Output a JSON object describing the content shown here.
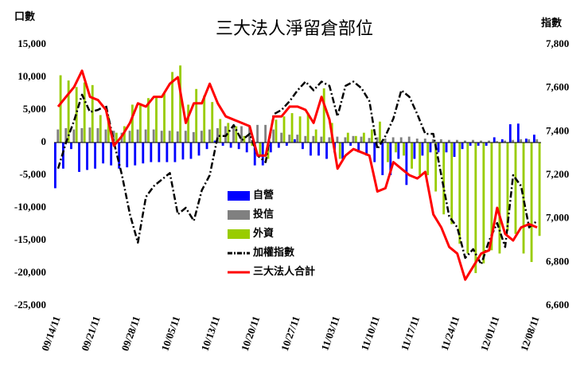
{
  "chart_data": {
    "type": "bar_line",
    "title": "三大法人淨留倉部位",
    "y_label": "口數",
    "y2_label": "指數",
    "categories": [
      "09/14/11",
      null,
      null,
      null,
      null,
      "09/21/11",
      null,
      null,
      null,
      null,
      "09/28/11",
      null,
      null,
      null,
      null,
      "10/05/11",
      null,
      null,
      null,
      null,
      "10/13/11",
      null,
      null,
      null,
      null,
      "10/20/11",
      null,
      null,
      null,
      null,
      "10/27/11",
      null,
      null,
      null,
      null,
      "11/03/11",
      null,
      null,
      null,
      null,
      "11/10/11",
      null,
      null,
      null,
      null,
      "11/17/11",
      null,
      null,
      null,
      null,
      "11/24/11",
      null,
      null,
      null,
      null,
      "12/01/11",
      null,
      null,
      null,
      null,
      "12/08/11"
    ],
    "series": [
      {
        "name": "自營",
        "kind": "bar",
        "color": "#0000ff",
        "values": [
          -7000,
          -4000,
          -1000,
          -4500,
          -4200,
          -4000,
          -3200,
          -3500,
          -4000,
          -3800,
          -3500,
          -3200,
          -3000,
          -3000,
          -3000,
          -3000,
          -2600,
          -2500,
          -2000,
          -1000,
          300,
          -500,
          -800,
          -1000,
          -1500,
          -3500,
          -3500,
          -1500,
          -800,
          -500,
          500,
          -1000,
          -2000,
          -2000,
          -2500,
          -1500,
          -2500,
          -500,
          -1500,
          -2000,
          -3000,
          -5000,
          -5000,
          -2500,
          -6500,
          -2500,
          -2000,
          -1500,
          -1500,
          -1500,
          -2200,
          -1000,
          -500,
          -500,
          -500,
          800,
          500,
          2800,
          2900,
          600,
          1200
        ]
      },
      {
        "name": "投信",
        "kind": "bar",
        "color": "#808080",
        "values": [
          2000,
          2200,
          2000,
          2200,
          2300,
          2200,
          2000,
          1800,
          1500,
          1800,
          2000,
          2000,
          2000,
          1800,
          1800,
          1700,
          1800,
          1600,
          1800,
          2000,
          2200,
          2500,
          2400,
          2500,
          2600,
          2700,
          2700,
          2000,
          1500,
          1200,
          1200,
          1000,
          1000,
          900,
          800,
          900,
          800,
          1000,
          900,
          700,
          800,
          600,
          800,
          800,
          900,
          600,
          600,
          500,
          500,
          400,
          400,
          300,
          400,
          300,
          300,
          200,
          300,
          400,
          500,
          500,
          500
        ]
      },
      {
        "name": "外資",
        "kind": "bar",
        "color": "#99cc00",
        "values": [
          10300,
          9500,
          8500,
          9200,
          8800,
          4200,
          4000,
          1500,
          2500,
          5800,
          6000,
          6800,
          7000,
          7500,
          10800,
          11800,
          5800,
          8200,
          7200,
          6200,
          3600,
          3000,
          2500,
          1000,
          -500,
          -2000,
          -2500,
          3500,
          4000,
          4500,
          4000,
          4500,
          2000,
          8300,
          3000,
          -2500,
          1500,
          1000,
          1500,
          2000,
          3200,
          -3000,
          -1500,
          -2000,
          -4000,
          -5000,
          -5000,
          -7500,
          -11000,
          -12500,
          -15500,
          -17000,
          -20000,
          -18500,
          -16500,
          -17000,
          -13500,
          -14000,
          -17000,
          -18300,
          -14300
        ]
      },
      {
        "name": "加權指數",
        "kind": "line",
        "axis": "y2",
        "color": "#000000",
        "values": [
          7230,
          7350,
          7450,
          7570,
          7490,
          7500,
          7520,
          7350,
          7200,
          7020,
          6890,
          7100,
          7150,
          7180,
          7210,
          7020,
          7050,
          6990,
          7130,
          7200,
          7380,
          7380,
          7430,
          7360,
          7390,
          7290,
          7260,
          7480,
          7500,
          7540,
          7590,
          7630,
          7590,
          7630,
          7610,
          7470,
          7610,
          7630,
          7600,
          7540,
          7320,
          7380,
          7460,
          7590,
          7560,
          7480,
          7390,
          7390,
          7200,
          7010,
          6960,
          6820,
          6860,
          6790,
          6900,
          6980,
          6870,
          7200,
          7150,
          6960,
          6990
        ]
      },
      {
        "name": "三大法人合計",
        "kind": "line",
        "color": "#ff0000",
        "values": [
          5500,
          7000,
          8500,
          11000,
          7000,
          6500,
          5000,
          -500,
          1000,
          3000,
          6000,
          5500,
          7000,
          7000,
          9000,
          10000,
          3000,
          6000,
          6000,
          9000,
          6000,
          4000,
          3500,
          3000,
          2500,
          -2000,
          -2000,
          4000,
          4000,
          5500,
          5500,
          5000,
          3000,
          7000,
          3500,
          -4000,
          -2000,
          -1000,
          -1500,
          -2000,
          -7500,
          -7000,
          -3000,
          -4000,
          -5000,
          -5500,
          -4500,
          -11000,
          -13000,
          -16000,
          -17000,
          -21000,
          -19000,
          -17000,
          -16500,
          -10000,
          -14000,
          -15000,
          -13000,
          -12500,
          -13000
        ]
      }
    ],
    "ylim": [
      -25000,
      15000
    ],
    "yticks": [
      {
        "value": -25000,
        "label": "-25,000"
      },
      {
        "value": -20000,
        "label": "-20,000"
      },
      {
        "value": -15000,
        "label": "-15,000"
      },
      {
        "value": -10000,
        "label": "-10,000"
      },
      {
        "value": -5000,
        "label": "-5,000"
      },
      0,
      {
        "value": 5000,
        "label": "5,000"
      },
      {
        "value": 10000,
        "label": "10,000"
      },
      {
        "value": 15000,
        "label": "15,000"
      }
    ],
    "y2lim": [
      6600,
      7800
    ],
    "y2ticks": [
      {
        "value": 6600,
        "label": "6,600"
      },
      {
        "value": 6800,
        "label": "6,800"
      },
      {
        "value": 7000,
        "label": "7,000"
      },
      {
        "value": 7200,
        "label": "7,200"
      },
      {
        "value": 7400,
        "label": "7,400"
      },
      {
        "value": 7600,
        "label": "7,600"
      },
      {
        "value": 7800,
        "label": "7,800"
      }
    ]
  }
}
